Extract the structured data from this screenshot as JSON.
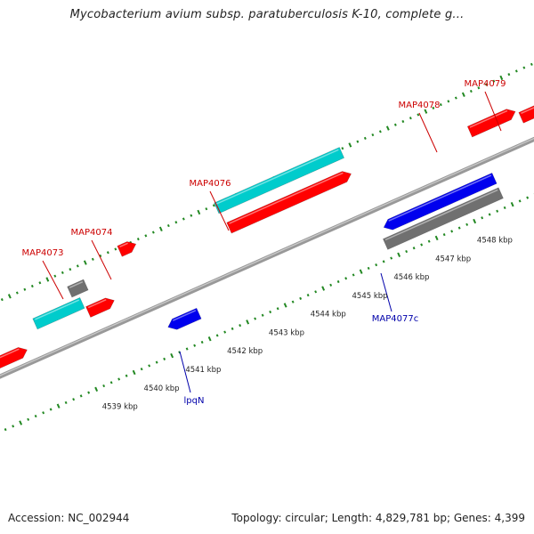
{
  "title": "Mycobacterium avium subsp. paratuberculosis K-10, complete g...",
  "footer": {
    "accession": "Accession: NC_002944",
    "summary": "Topology: circular; Length: 4,829,781 bp; Genes: 4,399"
  },
  "colors": {
    "forward_cds": "#ff0000",
    "reverse_cds": "#0000ee",
    "forward_rna": "#00cccc",
    "other_feature": "#707070",
    "backbone": "#888888",
    "tick": "#228822",
    "forward_label": "#cc0000",
    "reverse_label": "#0000aa",
    "scale_label": "#222222"
  },
  "scale_labels": [
    "4539 kbp",
    "4540 kbp",
    "4541 kbp",
    "4542 kbp",
    "4543 kbp",
    "4544 kbp",
    "4545 kbp",
    "4546 kbp",
    "4547 kbp",
    "4548 kbp"
  ],
  "gene_labels": [
    {
      "text": "MAP4073",
      "strand": "forward"
    },
    {
      "text": "MAP4074",
      "strand": "forward"
    },
    {
      "text": "MAP4076",
      "strand": "forward"
    },
    {
      "text": "MAP4078",
      "strand": "forward"
    },
    {
      "text": "MAP4079",
      "strand": "forward"
    },
    {
      "text": "lpqN",
      "strand": "reverse"
    },
    {
      "text": "MAP4077c",
      "strand": "reverse"
    }
  ]
}
